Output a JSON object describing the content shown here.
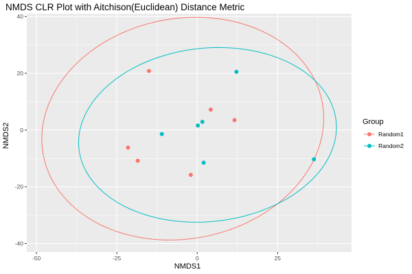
{
  "chart_data": {
    "type": "scatter",
    "title": "NMDS CLR Plot with Aitchison(Euclidean) Distance Metric",
    "xlabel": "NMDS1",
    "ylabel": "NMDS2",
    "xlim": [
      -53,
      48
    ],
    "ylim": [
      -43,
      41
    ],
    "x_ticks": [
      -50,
      -25,
      0,
      25
    ],
    "x_tick_labels": [
      "-50",
      "-25",
      "0",
      "25"
    ],
    "y_ticks": [
      -40,
      -20,
      0,
      20,
      40
    ],
    "y_tick_labels": [
      "-40",
      "-20",
      "0",
      "20",
      "40"
    ],
    "grid": true,
    "legend": {
      "title": "Group",
      "position": "right"
    },
    "series": [
      {
        "name": "Random1",
        "color": "#F8766D",
        "points": [
          {
            "x": -15.0,
            "y": 20.8
          },
          {
            "x": 4.2,
            "y": 7.2
          },
          {
            "x": 11.6,
            "y": 3.5
          },
          {
            "x": -21.5,
            "y": -6.2
          },
          {
            "x": -18.5,
            "y": -10.8
          },
          {
            "x": -2.0,
            "y": -15.8
          }
        ],
        "ellipse": {
          "cx": -4.5,
          "cy": 0.5,
          "rx": 44.5,
          "ry": 38.5,
          "angle": 20
        }
      },
      {
        "name": "Random2",
        "color": "#00BFC4",
        "points": [
          {
            "x": 12.2,
            "y": 20.5
          },
          {
            "x": 1.6,
            "y": 2.9
          },
          {
            "x": 0.2,
            "y": 1.6
          },
          {
            "x": -11.0,
            "y": -1.4
          },
          {
            "x": 2.0,
            "y": -11.5
          },
          {
            "x": 36.3,
            "y": -10.3
          }
        ],
        "ellipse": {
          "cx": 3.2,
          "cy": -1.7,
          "rx": 40.3,
          "ry": 30.5,
          "angle": 9
        }
      }
    ]
  }
}
